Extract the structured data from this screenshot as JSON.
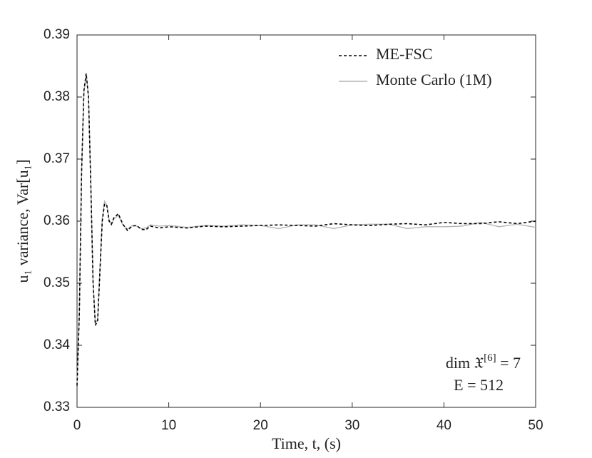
{
  "chart_data": {
    "type": "line",
    "x_label": "Time, t, (s)",
    "y_label": "u₁ variance, Var[u₁]",
    "x": [
      0,
      0.25,
      0.5,
      0.75,
      1.0,
      1.25,
      1.5,
      1.75,
      2.0,
      2.25,
      2.5,
      2.75,
      3.0,
      3.25,
      3.5,
      3.75,
      4.0,
      4.5,
      5.0,
      5.5,
      6.0,
      6.5,
      7.0,
      7.5,
      8.0,
      9,
      10,
      12,
      14,
      16,
      18,
      20,
      22,
      24,
      26,
      28,
      30,
      32,
      34,
      36,
      38,
      40,
      42,
      44,
      46,
      48,
      50
    ],
    "series": [
      {
        "name": "ME-FSC",
        "color": "#000000",
        "dashed": true,
        "values": [
          0.3335,
          0.345,
          0.368,
          0.381,
          0.3838,
          0.38,
          0.366,
          0.35,
          0.3432,
          0.344,
          0.352,
          0.36,
          0.3628,
          0.3625,
          0.36,
          0.3595,
          0.3605,
          0.3612,
          0.3595,
          0.3585,
          0.3592,
          0.3593,
          0.3587,
          0.3586,
          0.3592,
          0.3589,
          0.3591,
          0.3589,
          0.3592,
          0.3591,
          0.3592,
          0.3593,
          0.3594,
          0.3593,
          0.3592,
          0.3596,
          0.3594,
          0.3593,
          0.3595,
          0.3596,
          0.3594,
          0.3598,
          0.3596,
          0.3596,
          0.3599,
          0.3596,
          0.36
        ]
      },
      {
        "name": "Monte Carlo (1M)",
        "color": "#b4b4b4",
        "dashed": false,
        "values": [
          0.3338,
          0.3452,
          0.3682,
          0.3808,
          0.3836,
          0.3802,
          0.3662,
          0.3502,
          0.3434,
          0.3442,
          0.3524,
          0.3604,
          0.3632,
          0.3626,
          0.3602,
          0.3594,
          0.3603,
          0.361,
          0.3594,
          0.3587,
          0.3593,
          0.3592,
          0.3588,
          0.3589,
          0.3594,
          0.3592,
          0.3593,
          0.359,
          0.3593,
          0.3592,
          0.3594,
          0.3593,
          0.3588,
          0.3594,
          0.3594,
          0.3588,
          0.3594,
          0.3595,
          0.3595,
          0.3588,
          0.3591,
          0.3591,
          0.3592,
          0.3598,
          0.3591,
          0.3595,
          0.359
        ]
      }
    ],
    "xlim": [
      0,
      50
    ],
    "xticks": [
      0,
      10,
      20,
      30,
      40,
      50
    ],
    "ylim": [
      0.33,
      0.39
    ],
    "yticks": [
      0.33,
      0.34,
      0.35,
      0.36,
      0.37,
      0.38,
      0.39
    ],
    "grid": false,
    "legend": "top-right",
    "annotations": [
      {
        "parts": [
          "dim 𝔛",
          "[6]",
          " = 7"
        ]
      },
      {
        "parts": [
          "E = 512"
        ]
      }
    ]
  }
}
